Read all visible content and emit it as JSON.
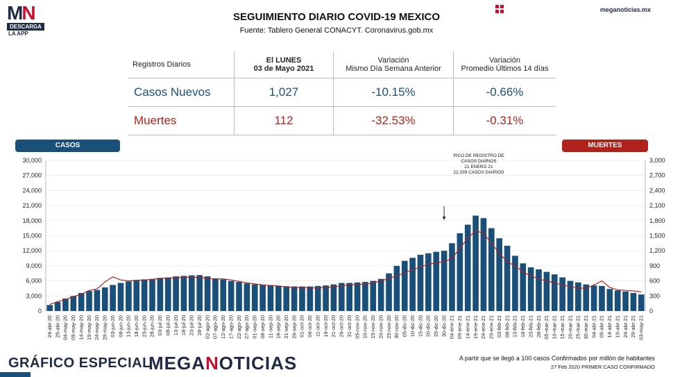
{
  "logo": {
    "mark_m": "M",
    "mark_n": "N",
    "bar": "DESCARGA",
    "sub": "LA APP"
  },
  "header": {
    "title": "SEGUIMIENTO DIARIO COVID-19 MEXICO",
    "subtitle": "Fuente: Tablero General CONACYT. Coronavirus.gob.mx",
    "site": "meganoticias.mx"
  },
  "summary": {
    "head": {
      "col0": "Registros Diarios",
      "col1a": "El LUNES",
      "col1b": "03 de Mayo 2021",
      "col2a": "Variación",
      "col2b": "Mismo Día Semana Anterior",
      "col3a": "Variación",
      "col3b": "Promedio Últimos 14 días"
    },
    "cases": {
      "label": "Casos Nuevos",
      "value": "1,027",
      "var_week": "-10.15%",
      "var_14": "-0.66%"
    },
    "deaths": {
      "label": "Muertes",
      "value": "112",
      "var_week": "-32.53%",
      "var_14": "-0.31%"
    }
  },
  "pills": {
    "cases": "CASOS",
    "deaths": "MUERTES"
  },
  "annotation": {
    "line1": "PICO DE REGISTRO DE",
    "line2": "CASOS DIARIOS",
    "line3": "21 ENERO 21",
    "line4": "22,339 CASOS DIARIOS"
  },
  "footer": {
    "special": "GRÁFICO ESPECIAL",
    "brand_a": "MEGA",
    "brand_n": "N",
    "brand_b": "OTICIAS",
    "note1": "A partir que se llegó a 100 casos Confirmados por millón de habitantes",
    "note2": "27 Feb 2020 PRIMER CASO CONFIRMADO"
  },
  "colors": {
    "cases": "#1a4f7a",
    "deaths": "#b0231c",
    "dark": "#1f2a44"
  },
  "chart_data": {
    "type": "bar",
    "title": "",
    "x_tick_labels": [
      "24-abr-20",
      "29-abr-20",
      "04-may-20",
      "09-may-20",
      "14-may-20",
      "19-may-20",
      "24-may-20",
      "29-may-20",
      "03-jun-20",
      "08-jun-20",
      "13-jun-20",
      "18-jun-20",
      "23-jun-20",
      "28-jun-20",
      "03-jul-20",
      "08-jul-20",
      "13-jul-20",
      "18-jul-20",
      "23-jul-20",
      "28-jul-20",
      "02-ago-20",
      "07-ago-20",
      "12-ago-20",
      "17-ago-20",
      "22-ago-20",
      "27-ago-20",
      "01-sep-20",
      "06-sep-20",
      "11-sep-20",
      "16-sep-20",
      "21-sep-20",
      "26-sep-20",
      "01-oct-20",
      "06-oct-20",
      "11-oct-20",
      "16-oct-20",
      "21-oct-20",
      "26-oct-20",
      "31-oct-20",
      "05-nov-20",
      "10-nov-20",
      "15-nov-20",
      "20-nov-20",
      "25-nov-20",
      "30-nov-20",
      "05-dic-20",
      "10-dic-20",
      "15-dic-20",
      "20-dic-20",
      "25-dic-20",
      "30-dic-20",
      "04-ene-21",
      "09-ene-21",
      "14-ene-21",
      "19-ene-21",
      "24-ene-21",
      "29-ene-21",
      "03-feb-21",
      "08-feb-21",
      "13-feb-21",
      "18-feb-21",
      "23-feb-21",
      "28-feb-21",
      "05-mar-21",
      "10-mar-21",
      "15-mar-21",
      "20-mar-21",
      "25-mar-21",
      "30-mar-21",
      "04-abr-21",
      "09-abr-21",
      "14-abr-21",
      "19-abr-21",
      "24-abr-21",
      "29-abr-21",
      "03-may-21"
    ],
    "left_axis": {
      "ticks": [
        "30,000",
        "27,000",
        "24,000",
        "21,000",
        "18,000",
        "15,000",
        "12,000",
        "9,000",
        "6,000",
        "3,000",
        "0"
      ],
      "ylim": [
        0,
        30000
      ]
    },
    "right_axis": {
      "ticks": [
        "3,000",
        "2,700",
        "2,400",
        "2,100",
        "1,800",
        "1,500",
        "1,200",
        "900",
        "600",
        "300",
        "0"
      ],
      "ylim": [
        0,
        3000
      ]
    },
    "series": [
      {
        "name": "CASOS",
        "values": [
          1200,
          1800,
          2500,
          3000,
          3600,
          4000,
          4200,
          4700,
          5200,
          5600,
          5900,
          6200,
          6300,
          6400,
          6600,
          6700,
          6900,
          7000,
          7100,
          7150,
          6900,
          6500,
          6300,
          6000,
          5800,
          5500,
          5300,
          5200,
          5100,
          5000,
          4950,
          4900,
          4900,
          4900,
          5000,
          5100,
          5300,
          5600,
          5600,
          5700,
          5800,
          6000,
          6400,
          7500,
          9000,
          10000,
          10600,
          11200,
          11500,
          11800,
          12000,
          13500,
          15500,
          17200,
          19000,
          18500,
          16500,
          14500,
          13000,
          11000,
          9500,
          8700,
          8300,
          7800,
          7300,
          6700,
          6000,
          5700,
          5300,
          5100,
          5000,
          4400,
          4100,
          3900,
          3600,
          3300
        ]
      },
      {
        "name": "MUERTES",
        "values": [
          130,
          190,
          230,
          290,
          330,
          410,
          440,
          580,
          680,
          620,
          600,
          610,
          620,
          630,
          650,
          660,
          660,
          670,
          670,
          670,
          650,
          640,
          640,
          620,
          590,
          560,
          540,
          520,
          510,
          500,
          480,
          460,
          470,
          460,
          460,
          470,
          480,
          500,
          520,
          530,
          530,
          560,
          600,
          650,
          700,
          760,
          820,
          880,
          930,
          960,
          980,
          1050,
          1250,
          1450,
          1600,
          1550,
          1350,
          1150,
          980,
          900,
          780,
          700,
          640,
          600,
          560,
          520,
          480,
          460,
          450,
          520,
          600,
          470,
          420,
          410,
          400,
          380
        ]
      }
    ],
    "annotations": [
      "PICO DE REGISTRO DE CASOS DIARIOS 21 ENERO 21 22,339 CASOS DIARIOS"
    ]
  }
}
